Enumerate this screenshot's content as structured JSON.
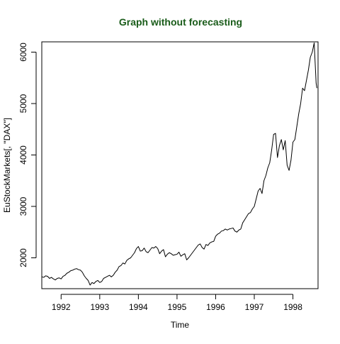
{
  "chart_data": {
    "type": "line",
    "title": "Graph without forecasting",
    "title_color": "#1a5c1a",
    "xlabel": "Time",
    "ylabel": "EuStockMarkets[, \"DAX\"]",
    "xlim": [
      1991.5,
      1998.65
    ],
    "ylim": [
      1400,
      6200
    ],
    "x_ticks": [
      1992,
      1993,
      1994,
      1995,
      1996,
      1997,
      1998
    ],
    "x_tick_labels": [
      "1992",
      "1993",
      "1994",
      "1995",
      "1996",
      "1997",
      "1998"
    ],
    "y_ticks": [
      2000,
      3000,
      4000,
      5000,
      6000
    ],
    "y_tick_labels": [
      "2000",
      "3000",
      "4000",
      "5000",
      "6000"
    ],
    "grid": false,
    "line_color": "#000000",
    "series": [
      {
        "x": [
          1991.5,
          1991.55,
          1991.6,
          1991.65,
          1991.7,
          1991.75,
          1991.8,
          1991.85,
          1991.9,
          1991.95,
          1992.0,
          1992.05,
          1992.1,
          1992.15,
          1992.2,
          1992.25,
          1992.3,
          1992.35,
          1992.4,
          1992.45,
          1992.5,
          1992.55,
          1992.6,
          1992.65,
          1992.7,
          1992.75,
          1992.8,
          1992.85,
          1992.9,
          1992.95,
          1993.0,
          1993.05,
          1993.1,
          1993.15,
          1993.2,
          1993.25,
          1993.3,
          1993.35,
          1993.4,
          1993.45,
          1993.5,
          1993.55,
          1993.6,
          1993.65,
          1993.7,
          1993.75,
          1993.8,
          1993.85,
          1993.9,
          1993.95,
          1994.0,
          1994.05,
          1994.1,
          1994.15,
          1994.2,
          1994.25,
          1994.3,
          1994.35,
          1994.4,
          1994.45,
          1994.5,
          1994.55,
          1994.6,
          1994.65,
          1994.7,
          1994.75,
          1994.8,
          1994.85,
          1994.9,
          1994.95,
          1995.0,
          1995.05,
          1995.1,
          1995.15,
          1995.2,
          1995.25,
          1995.3,
          1995.35,
          1995.4,
          1995.45,
          1995.5,
          1995.55,
          1995.6,
          1995.65,
          1995.7,
          1995.75,
          1995.8,
          1995.85,
          1995.9,
          1995.95,
          1996.0,
          1996.05,
          1996.1,
          1996.15,
          1996.2,
          1996.25,
          1996.3,
          1996.35,
          1996.4,
          1996.45,
          1996.5,
          1996.55,
          1996.6,
          1996.65,
          1996.7,
          1996.75,
          1996.8,
          1996.85,
          1996.9,
          1996.95,
          1997.0,
          1997.05,
          1997.1,
          1997.15,
          1997.2,
          1997.25,
          1997.3,
          1997.35,
          1997.4,
          1997.45,
          1997.5,
          1997.55,
          1997.6,
          1997.65,
          1997.7,
          1997.75,
          1997.8,
          1997.85,
          1997.9,
          1997.95,
          1998.0,
          1998.05,
          1998.1,
          1998.15,
          1998.2,
          1998.25,
          1998.3,
          1998.35,
          1998.4,
          1998.45,
          1998.5,
          1998.55,
          1998.6,
          1998.62
        ],
        "y": [
          1630,
          1620,
          1650,
          1640,
          1600,
          1620,
          1590,
          1570,
          1600,
          1610,
          1590,
          1640,
          1660,
          1700,
          1720,
          1750,
          1760,
          1780,
          1790,
          1770,
          1760,
          1720,
          1650,
          1600,
          1560,
          1470,
          1520,
          1500,
          1540,
          1560,
          1520,
          1540,
          1600,
          1620,
          1640,
          1660,
          1630,
          1660,
          1720,
          1760,
          1830,
          1850,
          1900,
          1880,
          1950,
          1980,
          2000,
          2050,
          2100,
          2180,
          2220,
          2130,
          2140,
          2190,
          2120,
          2100,
          2150,
          2200,
          2190,
          2220,
          2180,
          2080,
          2130,
          2160,
          2020,
          2070,
          2100,
          2080,
          2050,
          2060,
          2070,
          2110,
          2030,
          2060,
          2080,
          1960,
          2000,
          2050,
          2100,
          2150,
          2200,
          2250,
          2270,
          2200,
          2170,
          2260,
          2240,
          2290,
          2310,
          2320,
          2420,
          2460,
          2480,
          2520,
          2530,
          2560,
          2540,
          2560,
          2570,
          2580,
          2520,
          2500,
          2540,
          2560,
          2680,
          2740,
          2800,
          2860,
          2880,
          2950,
          3000,
          3150,
          3300,
          3350,
          3250,
          3500,
          3600,
          3750,
          3850,
          4100,
          4400,
          4420,
          3950,
          4180,
          4300,
          4100,
          4280,
          3800,
          3700,
          3900,
          4250,
          4300,
          4550,
          4800,
          5000,
          5300,
          5250,
          5450,
          5650,
          5900,
          6000,
          6180,
          5400,
          5300
        ]
      }
    ]
  }
}
